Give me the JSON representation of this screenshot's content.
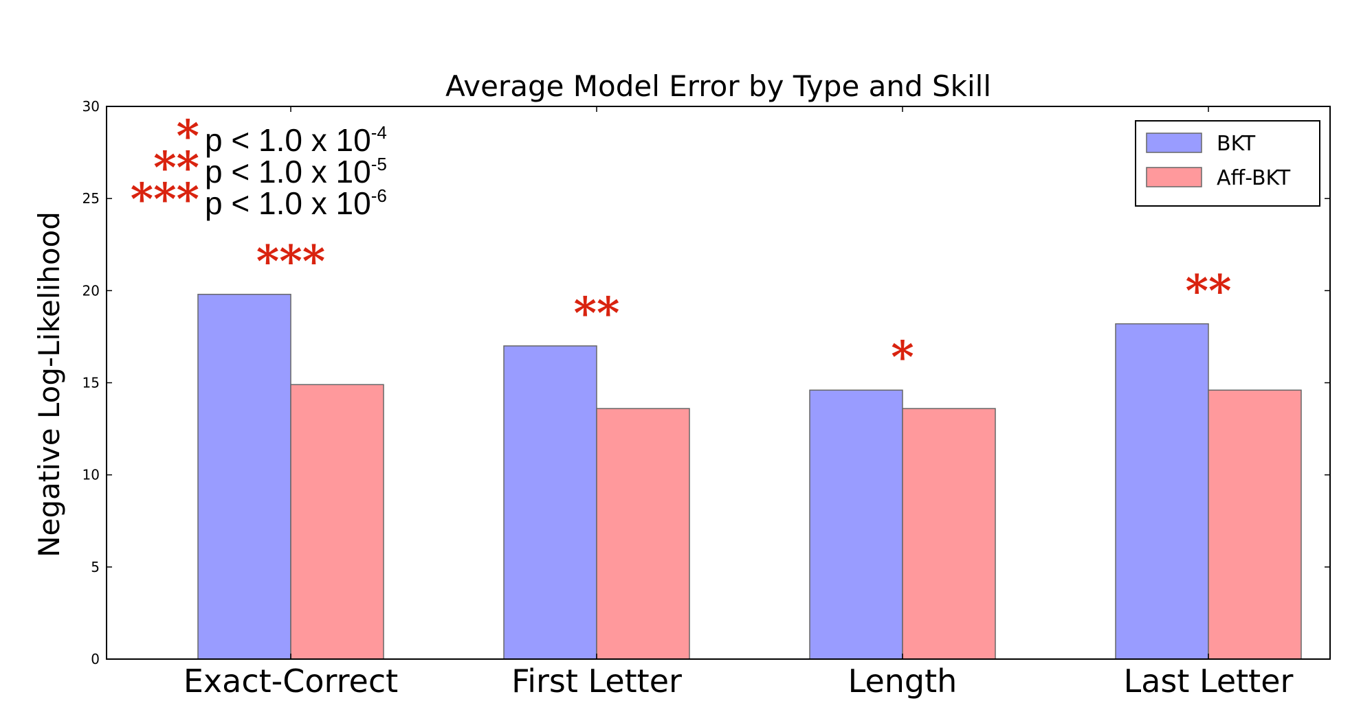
{
  "chart_data": {
    "type": "bar",
    "title": "Average Model Error by Type and Skill",
    "xlabel": "",
    "ylabel": "Negative Log-Likelihood",
    "categories": [
      "Exact-Correct",
      "First Letter",
      "Length",
      "Last Letter"
    ],
    "series": [
      {
        "name": "BKT",
        "values": [
          19.8,
          17.0,
          14.6,
          18.2
        ],
        "color": "#999cff"
      },
      {
        "name": "Aff-BKT",
        "values": [
          14.9,
          13.6,
          13.6,
          14.6
        ],
        "color": "#ff999c"
      }
    ],
    "ylim": [
      0,
      30
    ],
    "yticks": [
      "0",
      "5",
      "10",
      "15",
      "20",
      "25",
      "30"
    ],
    "grid": false,
    "legend_position": "top-right",
    "significance_markers": [
      "***",
      "**",
      "*",
      "**"
    ],
    "significance_legend": [
      {
        "stars": "*",
        "text": "p < 1.0 x 10",
        "exponent": "-4"
      },
      {
        "stars": "**",
        "text": "p < 1.0 x 10",
        "exponent": "-5"
      },
      {
        "stars": "***",
        "text": "p < 1.0 x 10",
        "exponent": "-6"
      }
    ],
    "star_color": "#d9230f"
  }
}
